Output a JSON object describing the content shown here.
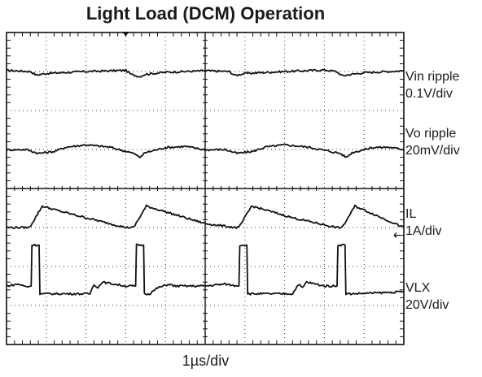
{
  "chart_data": {
    "type": "line",
    "title": "Light Load (DCM) Operation",
    "xlabel": "1µs/div",
    "ylabel": "",
    "grid": true,
    "x_divisions": 10,
    "y_divisions": 8,
    "xlim_div": [
      0,
      10
    ],
    "ylim_div": [
      0,
      8
    ],
    "series": [
      {
        "name": "Vin ripple",
        "scale": "0.1V/div",
        "color": "#111111",
        "x_div": [
          0,
          0.6,
          0.75,
          1.0,
          2.0,
          3.0,
          3.15,
          3.35,
          3.5,
          4.0,
          5.0,
          5.6,
          5.75,
          6.0,
          7.0,
          8.0,
          8.3,
          8.45,
          8.7,
          9.0,
          10.0
        ],
        "y_div": [
          7.03,
          7.0,
          6.91,
          6.95,
          7.0,
          7.03,
          6.92,
          6.87,
          6.93,
          6.98,
          7.02,
          7.0,
          6.9,
          6.95,
          7.0,
          7.04,
          7.0,
          6.89,
          6.93,
          6.97,
          7.02
        ]
      },
      {
        "name": "Vo ripple",
        "scale": "20mV/div",
        "color": "#111111",
        "x_div": [
          0,
          0.5,
          0.8,
          1.2,
          1.5,
          2.0,
          2.6,
          3.2,
          3.35,
          3.5,
          4.0,
          4.5,
          5.0,
          5.5,
          5.8,
          6.2,
          6.5,
          7.0,
          7.6,
          8.4,
          8.55,
          8.7,
          9.2,
          9.6,
          10.0
        ],
        "y_div": [
          4.99,
          5.0,
          4.9,
          4.95,
          5.06,
          5.12,
          5.06,
          4.9,
          4.8,
          4.92,
          5.05,
          5.08,
          4.99,
          5.0,
          4.9,
          4.95,
          5.06,
          5.12,
          5.06,
          4.9,
          4.8,
          4.92,
          5.05,
          5.06,
          5.0
        ]
      },
      {
        "name": "IL",
        "scale": "1A/div",
        "color": "#111111",
        "x_div": [
          0,
          0.58,
          0.9,
          1.3,
          2.0,
          3.0,
          3.2,
          3.52,
          4.5,
          5.0,
          5.75,
          5.85,
          6.17,
          7.2,
          8.3,
          8.45,
          8.77,
          10.0
        ],
        "y_div": [
          3.0,
          3.0,
          3.55,
          3.43,
          3.25,
          3.0,
          3.0,
          3.55,
          3.25,
          3.1,
          3.0,
          3.0,
          3.55,
          3.25,
          3.0,
          3.0,
          3.55,
          3.0
        ]
      },
      {
        "name": "VLX",
        "scale": "20V/div",
        "color": "#111111",
        "x_div": [
          0,
          0.3,
          0.5,
          0.62,
          0.64,
          0.82,
          0.84,
          1.1,
          2.1,
          2.2,
          2.3,
          2.4,
          3.0,
          3.25,
          3.27,
          3.45,
          3.47,
          3.6,
          3.8,
          4.1,
          4.2,
          5.0,
          5.5,
          5.8,
          5.85,
          5.87,
          6.05,
          6.07,
          6.3,
          7.2,
          7.35,
          7.45,
          7.55,
          8.0,
          8.32,
          8.34,
          8.52,
          8.54,
          8.7,
          10.0
        ],
        "y_div": [
          1.5,
          1.55,
          1.48,
          1.5,
          2.55,
          2.55,
          1.3,
          1.3,
          1.3,
          1.55,
          1.45,
          1.6,
          1.5,
          1.5,
          2.55,
          2.55,
          1.3,
          1.3,
          1.45,
          1.55,
          1.5,
          1.5,
          1.55,
          1.5,
          1.5,
          2.55,
          2.55,
          1.3,
          1.3,
          1.3,
          1.55,
          1.45,
          1.6,
          1.5,
          1.5,
          2.55,
          2.55,
          1.3,
          1.3,
          1.35
        ]
      }
    ]
  }
}
